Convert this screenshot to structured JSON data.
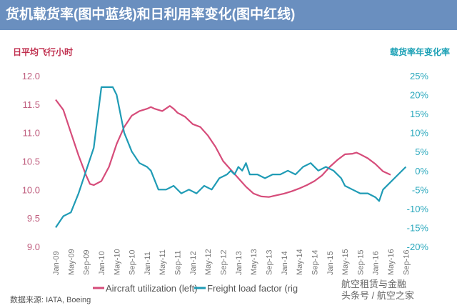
{
  "title": "货机载货率(图中蓝线)和日利用率变化(图中红线)",
  "source": "数据来源: IATA, Boeing",
  "watermark": [
    "航空租赁与金融",
    "头条号 / 航空之家"
  ],
  "chart_data": {
    "type": "line",
    "ylabel_left": "日平均飞行小时",
    "ylabel_right": "载货率年变化率",
    "ylim_left": [
      9.0,
      12.0
    ],
    "yticks_left": [
      "12.0",
      "11.5",
      "11.0",
      "10.5",
      "10.0",
      "9.5",
      "9.0"
    ],
    "ylim_right": [
      -20,
      25
    ],
    "yticks_right": [
      "25%",
      "20%",
      "15%",
      "10%",
      "5%",
      "0%",
      "-5%",
      "-10%",
      "-15%",
      "-20%"
    ],
    "xticks": [
      "Jan-09",
      "May-09",
      "Sep-09",
      "Jan-10",
      "May-10",
      "Sep-10",
      "Jan-11",
      "May-11",
      "Sep-11",
      "Jan-12",
      "May-12",
      "Sep-12",
      "Jan-13",
      "May-13",
      "Sep-13",
      "Jan-14",
      "May-14",
      "Sep-14",
      "Jan-15",
      "May-15",
      "Sep-15",
      "Jan-16",
      "May-16",
      "Sep-16"
    ],
    "grid": false,
    "legend": "bottom",
    "colors": {
      "utilization": "#d64c7a",
      "freight": "#1f9bb5"
    },
    "series": [
      {
        "name": "Aircraft utilization (left)",
        "axis": "left",
        "x": [
          "2009-01",
          "2009-03",
          "2009-05",
          "2009-07",
          "2009-09",
          "2009-10",
          "2009-11",
          "2010-01",
          "2010-03",
          "2010-05",
          "2010-07",
          "2010-09",
          "2010-11",
          "2011-01",
          "2011-02",
          "2011-03",
          "2011-05",
          "2011-07",
          "2011-08",
          "2011-09",
          "2011-11",
          "2012-01",
          "2012-03",
          "2012-05",
          "2012-07",
          "2012-09",
          "2012-11",
          "2013-01",
          "2013-03",
          "2013-05",
          "2013-07",
          "2013-09",
          "2013-11",
          "2014-01",
          "2014-03",
          "2014-05",
          "2014-07",
          "2014-09",
          "2014-11",
          "2015-01",
          "2015-03",
          "2015-05",
          "2015-07",
          "2015-08",
          "2015-09",
          "2015-11",
          "2016-01",
          "2016-03",
          "2016-05"
        ],
        "values": [
          11.58,
          11.4,
          11.0,
          10.6,
          10.25,
          10.1,
          10.08,
          10.15,
          10.4,
          10.8,
          11.1,
          11.3,
          11.38,
          11.42,
          11.45,
          11.42,
          11.38,
          11.47,
          11.42,
          11.35,
          11.28,
          11.15,
          11.1,
          10.95,
          10.75,
          10.5,
          10.35,
          10.2,
          10.05,
          9.93,
          9.88,
          9.87,
          9.9,
          9.93,
          9.97,
          10.02,
          10.08,
          10.15,
          10.25,
          10.4,
          10.52,
          10.62,
          10.63,
          10.65,
          10.62,
          10.55,
          10.45,
          10.32,
          10.26
        ]
      },
      {
        "name": "Freight load factor (right)",
        "axis": "right",
        "x": [
          "2009-01",
          "2009-03",
          "2009-05",
          "2009-07",
          "2009-09",
          "2009-11",
          "2009-12",
          "2010-01",
          "2010-04",
          "2010-05",
          "2010-07",
          "2010-09",
          "2010-11",
          "2011-01",
          "2011-02",
          "2011-04",
          "2011-06",
          "2011-08",
          "2011-10",
          "2011-12",
          "2012-02",
          "2012-04",
          "2012-06",
          "2012-08",
          "2012-10",
          "2012-11",
          "2012-12",
          "2013-01",
          "2013-02",
          "2013-03",
          "2013-04",
          "2013-06",
          "2013-08",
          "2013-10",
          "2013-12",
          "2014-02",
          "2014-04",
          "2014-06",
          "2014-08",
          "2014-10",
          "2014-12",
          "2015-02",
          "2015-04",
          "2015-05",
          "2015-07",
          "2015-09",
          "2015-11",
          "2016-01",
          "2016-02",
          "2016-03",
          "2016-06",
          "2016-09"
        ],
        "values": [
          -15,
          -12,
          -11,
          -6,
          0,
          6,
          14,
          22,
          22,
          20,
          10,
          5,
          2,
          1,
          0,
          -5,
          -5,
          -4,
          -6,
          -5,
          -6,
          -4,
          -5,
          -2,
          -1,
          0,
          -1,
          1,
          0,
          2,
          -1,
          -1,
          -2,
          -1,
          -1,
          0,
          -1,
          1,
          2,
          0,
          1,
          0,
          -2,
          -4,
          -5,
          -6,
          -6,
          -7,
          -8,
          -5,
          -2,
          1
        ]
      }
    ],
    "legend_labels": [
      "Aircraft utilization (left)",
      "Freight load factor (rig"
    ]
  }
}
